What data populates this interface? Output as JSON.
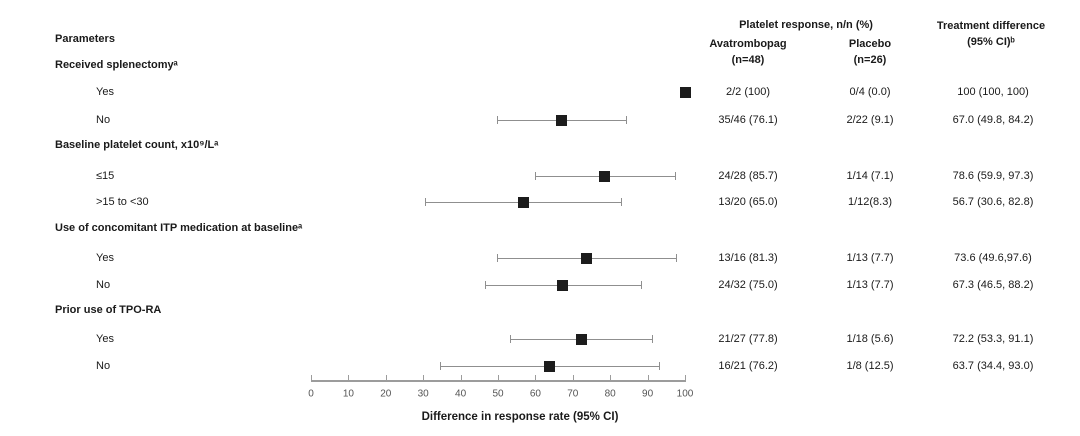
{
  "left_header": "Parameters",
  "groups": [
    {
      "label": "Received splenectomyᵃ"
    },
    {
      "label": "Baseline platelet count, x10⁹/Lᵃ"
    },
    {
      "label": "Use of concomitant ITP medication at baselineᵃ"
    },
    {
      "label": "Prior use of TPO-RA"
    }
  ],
  "columns": {
    "platelet_header": "Platelet response, n/n (%)",
    "avatrombopag_line1": "Avatrombopag",
    "avatrombopag_line2": "(n=48)",
    "placebo_line1": "Placebo",
    "placebo_line2": "(n=26)",
    "difference_line1": "Treatment difference",
    "difference_line2": "(95% CI)ᵇ"
  },
  "chart_data": {
    "type": "scatter",
    "variant": "forest-plot",
    "title": "",
    "xlabel": "Difference in response rate (95% CI)",
    "ylabel": "",
    "xlim": [
      0,
      100
    ],
    "xticks": [
      0,
      10,
      20,
      30,
      40,
      50,
      60,
      70,
      80,
      90,
      100
    ],
    "grid": false,
    "marker_color": "#1c1c1c",
    "ci_color": "#8f8f8f",
    "rows": [
      {
        "group": "Received splenectomyᵃ",
        "label": "Yes",
        "estimate": 100,
        "ci": [
          100,
          100
        ],
        "avatrombopag": "2/2 (100)",
        "placebo": "0/4 (0.0)",
        "difference": "100 (100, 100)"
      },
      {
        "group": "Received splenectomyᵃ",
        "label": "No",
        "estimate": 67.0,
        "ci": [
          49.8,
          84.2
        ],
        "avatrombopag": "35/46 (76.1)",
        "placebo": "2/22 (9.1)",
        "difference": "67.0 (49.8, 84.2)"
      },
      {
        "group": "Baseline platelet count, x10⁹/Lᵃ",
        "label": "≤15",
        "estimate": 78.6,
        "ci": [
          59.9,
          97.3
        ],
        "avatrombopag": "24/28 (85.7)",
        "placebo": "1/14 (7.1)",
        "difference": "78.6 (59.9, 97.3)"
      },
      {
        "group": "Baseline platelet count, x10⁹/Lᵃ",
        "label": ">15 to <30",
        "estimate": 56.7,
        "ci": [
          30.6,
          82.8
        ],
        "avatrombopag": "13/20 (65.0)",
        "placebo": "1/12(8.3)",
        "difference": "56.7 (30.6, 82.8)"
      },
      {
        "group": "Use of concomitant ITP medication at baselineᵃ",
        "label": "Yes",
        "estimate": 73.6,
        "ci": [
          49.6,
          97.6
        ],
        "avatrombopag": "13/16 (81.3)",
        "placebo": "1/13 (7.7)",
        "difference": "73.6 (49.6,97.6)"
      },
      {
        "group": "Use of concomitant ITP medication at baselineᵃ",
        "label": "No",
        "estimate": 67.3,
        "ci": [
          46.5,
          88.2
        ],
        "avatrombopag": "24/32 (75.0)",
        "placebo": "1/13 (7.7)",
        "difference": "67.3 (46.5, 88.2)"
      },
      {
        "group": "Prior use of TPO-RA",
        "label": "Yes",
        "estimate": 72.2,
        "ci": [
          53.3,
          91.1
        ],
        "avatrombopag": "21/27 (77.8)",
        "placebo": "1/18 (5.6)",
        "difference": "72.2 (53.3, 91.1)"
      },
      {
        "group": "Prior use of TPO-RA",
        "label": "No",
        "estimate": 63.7,
        "ci": [
          34.4,
          93.0
        ],
        "avatrombopag": "16/21 (76.2)",
        "placebo": "1/8 (12.5)",
        "difference": "63.7 (34.4, 93.0)"
      }
    ]
  }
}
